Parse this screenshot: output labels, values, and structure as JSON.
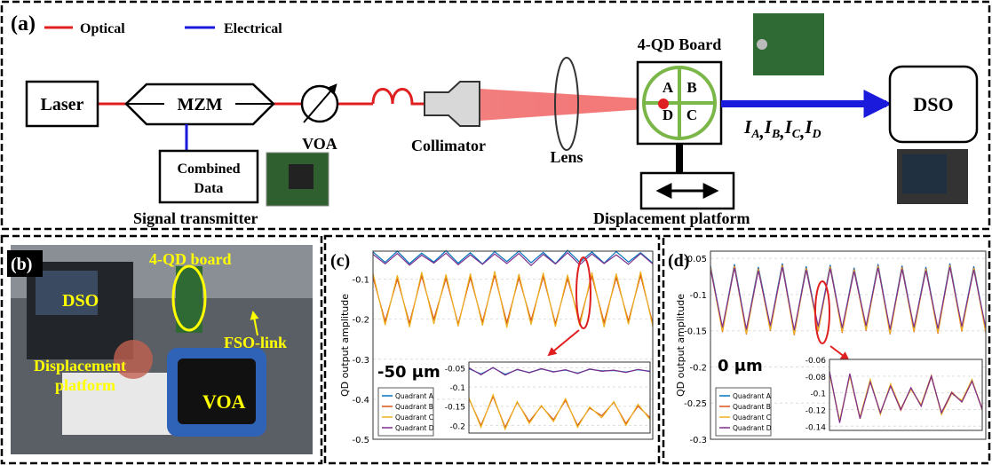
{
  "diagram": {
    "label": "(a)",
    "legend": [
      {
        "name": "Optical",
        "color": "#e02020"
      },
      {
        "name": "Electrical",
        "color": "#1a1adc"
      }
    ],
    "laser": "Laser",
    "mzm": "MZM",
    "voa": "VOA",
    "collimator": "Collimator",
    "lens": "Lens",
    "board": "4-QD Board",
    "quadrants": [
      "A",
      "B",
      "C",
      "D"
    ],
    "dso": "DSO",
    "combined_data": [
      "Combined",
      "Data"
    ],
    "signal_transmitter": "Signal transmitter",
    "displacement_platform": "Displacement platform",
    "currents": [
      {
        "main": "I",
        "sub": "A"
      },
      {
        "main": "I",
        "sub": "B"
      },
      {
        "main": "I",
        "sub": "C"
      },
      {
        "main": "I",
        "sub": "D"
      }
    ],
    "separator": ","
  },
  "photo": {
    "label": "(b)",
    "dso": "DSO",
    "board": "4-QD board",
    "fso_link": "FSO-link",
    "platform": [
      "Displacement",
      "platform"
    ],
    "voa": "VOA"
  },
  "chart_data": [
    {
      "type": "line",
      "label": "(c)",
      "y_label": "QD output amplitude",
      "annotation": "-50 μm",
      "ylim": [
        -0.5,
        -0.03
      ],
      "yticks": [
        -0.1,
        -0.2,
        -0.3,
        -0.4,
        -0.5
      ],
      "grid": true,
      "series": [
        {
          "name": "Quadrant A",
          "color": "#0072bd",
          "values": [
            -0.032,
            -0.058,
            -0.03,
            -0.061,
            -0.035,
            -0.057,
            -0.029,
            -0.06,
            -0.034,
            -0.062,
            -0.031,
            -0.056,
            -0.03,
            -0.059,
            -0.033,
            -0.061,
            -0.028,
            -0.058,
            -0.032,
            -0.06,
            -0.031,
            -0.057,
            -0.034,
            -0.06
          ]
        },
        {
          "name": "Quadrant B",
          "color": "#d95319",
          "values": [
            -0.095,
            -0.205,
            -0.1,
            -0.21,
            -0.092,
            -0.2,
            -0.098,
            -0.212,
            -0.096,
            -0.207,
            -0.09,
            -0.209,
            -0.097,
            -0.203,
            -0.094,
            -0.211,
            -0.099,
            -0.206,
            -0.093,
            -0.208,
            -0.096,
            -0.204,
            -0.091,
            -0.21
          ]
        },
        {
          "name": "Quadrant C",
          "color": "#edb120",
          "values": [
            -0.085,
            -0.215,
            -0.09,
            -0.22,
            -0.082,
            -0.212,
            -0.088,
            -0.218,
            -0.086,
            -0.216,
            -0.08,
            -0.221,
            -0.087,
            -0.214,
            -0.084,
            -0.219,
            -0.089,
            -0.217,
            -0.083,
            -0.22,
            -0.086,
            -0.213,
            -0.081,
            -0.218
          ]
        },
        {
          "name": "Quadrant D",
          "color": "#7e2f8e",
          "values": [
            -0.038,
            -0.062,
            -0.036,
            -0.065,
            -0.04,
            -0.06,
            -0.035,
            -0.064,
            -0.039,
            -0.063,
            -0.037,
            -0.061,
            -0.036,
            -0.066,
            -0.038,
            -0.062,
            -0.034,
            -0.064,
            -0.037,
            -0.061,
            -0.039,
            -0.063,
            -0.036,
            -0.062
          ]
        }
      ],
      "inset": {
        "ylim": [
          -0.22,
          -0.035
        ],
        "yticks": [
          -0.05,
          -0.1,
          -0.15,
          -0.2
        ],
        "series": [
          {
            "values": [
              -0.052,
              -0.066,
              -0.05,
              -0.067,
              -0.055,
              -0.062,
              -0.053,
              -0.06,
              -0.056,
              -0.064,
              -0.054,
              -0.058,
              -0.057,
              -0.061,
              -0.055,
              -0.059
            ]
          },
          {
            "values": [
              -0.13,
              -0.2,
              -0.125,
              -0.205,
              -0.14,
              -0.19,
              -0.15,
              -0.185,
              -0.135,
              -0.2,
              -0.155,
              -0.175,
              -0.14,
              -0.195,
              -0.15,
              -0.18
            ]
          },
          {
            "values": [
              -0.128,
              -0.205,
              -0.12,
              -0.21,
              -0.138,
              -0.195,
              -0.148,
              -0.19,
              -0.13,
              -0.205,
              -0.152,
              -0.18,
              -0.138,
              -0.2,
              -0.145,
              -0.185
            ]
          },
          {
            "values": [
              -0.05,
              -0.068,
              -0.049,
              -0.069,
              -0.054,
              -0.063,
              -0.052,
              -0.061,
              -0.055,
              -0.065,
              -0.053,
              -0.059,
              -0.056,
              -0.062,
              -0.054,
              -0.06
            ]
          }
        ]
      }
    },
    {
      "type": "line",
      "label": "(d)",
      "y_label": "QD output amplitude",
      "annotation": "0 μm",
      "ylim": [
        -0.3,
        -0.04
      ],
      "yticks": [
        -0.05,
        -0.1,
        -0.15,
        -0.2,
        -0.25,
        -0.3
      ],
      "grid": true,
      "series": [
        {
          "name": "Quadrant A",
          "color": "#0072bd",
          "values": [
            -0.06,
            -0.148,
            -0.058,
            -0.15,
            -0.062,
            -0.145,
            -0.057,
            -0.152,
            -0.061,
            -0.147,
            -0.059,
            -0.149,
            -0.063,
            -0.146,
            -0.058,
            -0.151,
            -0.06,
            -0.148,
            -0.062,
            -0.15,
            -0.057,
            -0.147,
            -0.061,
            -0.149
          ]
        },
        {
          "name": "Quadrant B",
          "color": "#d95319",
          "values": [
            -0.062,
            -0.152,
            -0.06,
            -0.155,
            -0.064,
            -0.15,
            -0.059,
            -0.156,
            -0.063,
            -0.151,
            -0.061,
            -0.153,
            -0.065,
            -0.15,
            -0.06,
            -0.155,
            -0.062,
            -0.152,
            -0.064,
            -0.154,
            -0.059,
            -0.151,
            -0.063,
            -0.153
          ]
        },
        {
          "name": "Quadrant C",
          "color": "#edb120",
          "values": [
            -0.063,
            -0.151,
            -0.061,
            -0.154,
            -0.065,
            -0.149,
            -0.06,
            -0.155,
            -0.064,
            -0.15,
            -0.062,
            -0.152,
            -0.066,
            -0.149,
            -0.061,
            -0.154,
            -0.063,
            -0.151,
            -0.065,
            -0.153,
            -0.06,
            -0.15,
            -0.064,
            -0.152
          ]
        },
        {
          "name": "Quadrant D",
          "color": "#7e2f8e",
          "values": [
            -0.065,
            -0.145,
            -0.063,
            -0.148,
            -0.067,
            -0.143,
            -0.062,
            -0.149,
            -0.066,
            -0.144,
            -0.064,
            -0.146,
            -0.068,
            -0.143,
            -0.063,
            -0.148,
            -0.065,
            -0.145,
            -0.067,
            -0.147,
            -0.062,
            -0.144,
            -0.066,
            -0.146
          ]
        }
      ],
      "inset": {
        "ylim": [
          -0.145,
          -0.06
        ],
        "yticks": [
          -0.06,
          -0.08,
          -0.1,
          -0.12,
          -0.14
        ],
        "series": [
          {
            "values": [
              -0.075,
              -0.135,
              -0.078,
              -0.13,
              -0.085,
              -0.125,
              -0.09,
              -0.12,
              -0.095,
              -0.115,
              -0.08,
              -0.125,
              -0.1,
              -0.11,
              -0.085,
              -0.12
            ]
          },
          {
            "values": [
              -0.076,
              -0.134,
              -0.079,
              -0.131,
              -0.086,
              -0.124,
              -0.091,
              -0.121,
              -0.094,
              -0.116,
              -0.081,
              -0.124,
              -0.099,
              -0.111,
              -0.086,
              -0.119
            ]
          },
          {
            "values": [
              -0.077,
              -0.133,
              -0.08,
              -0.129,
              -0.084,
              -0.126,
              -0.089,
              -0.119,
              -0.096,
              -0.114,
              -0.079,
              -0.126,
              -0.101,
              -0.109,
              -0.084,
              -0.121
            ]
          },
          {
            "values": [
              -0.074,
              -0.136,
              -0.077,
              -0.131,
              -0.087,
              -0.124,
              -0.092,
              -0.12,
              -0.094,
              -0.116,
              -0.08,
              -0.124,
              -0.1,
              -0.111,
              -0.086,
              -0.12
            ]
          }
        ]
      }
    }
  ]
}
